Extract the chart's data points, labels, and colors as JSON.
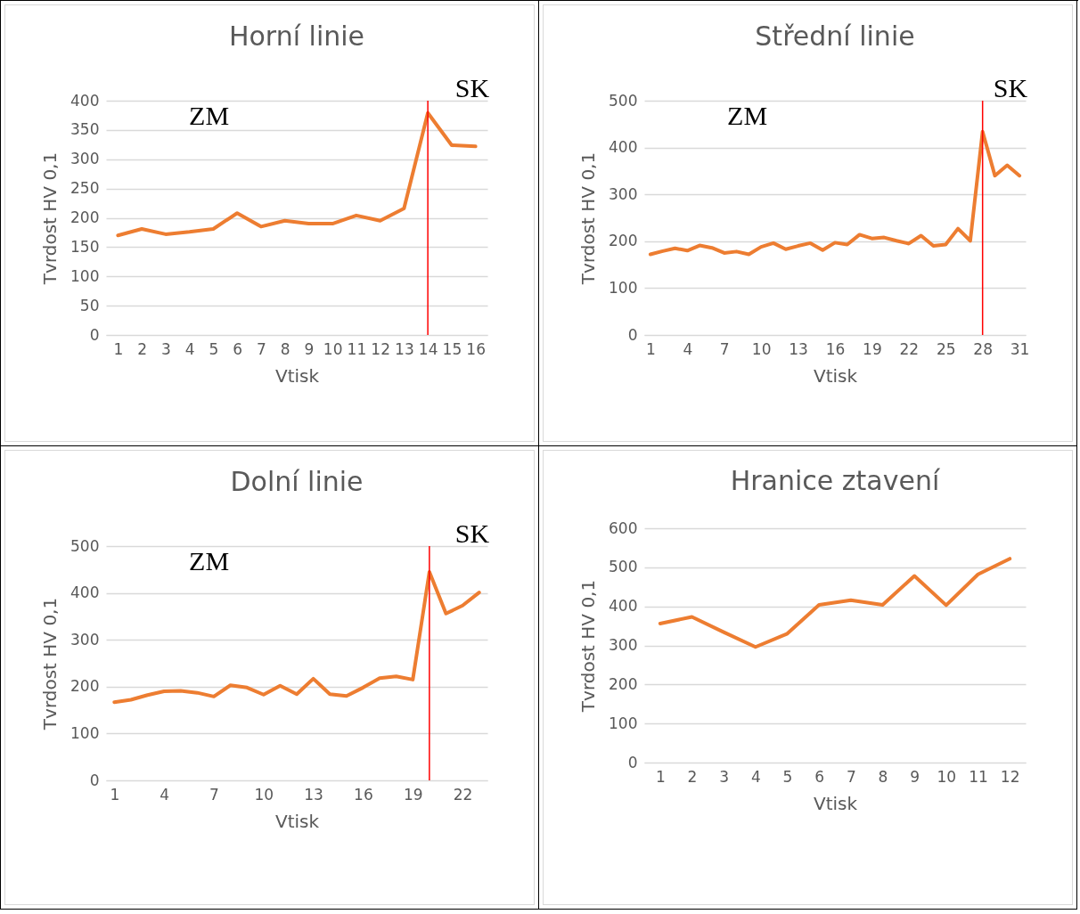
{
  "chart_data": [
    {
      "type": "line",
      "title": "Horní linie",
      "xlabel": "Vtisk",
      "ylabel": "Tvrdost HV 0,1",
      "x": [
        1,
        2,
        3,
        4,
        5,
        6,
        7,
        8,
        9,
        10,
        11,
        12,
        13,
        14,
        15,
        16
      ],
      "xlim": [
        0.5,
        16.5
      ],
      "xticks": [
        1,
        2,
        3,
        4,
        5,
        6,
        7,
        8,
        9,
        10,
        11,
        12,
        13,
        14,
        15,
        16
      ],
      "ylim": [
        0,
        400
      ],
      "yticks": [
        0,
        50,
        100,
        150,
        200,
        250,
        300,
        350,
        400
      ],
      "grid": "y",
      "series": [
        {
          "color": "#ed7d31",
          "values": [
            170,
            181,
            172,
            176,
            181,
            208,
            185,
            195,
            190,
            190,
            204,
            195,
            216,
            379,
            324,
            322
          ]
        }
      ],
      "ref_lines": [
        {
          "axis": "x",
          "value": 14,
          "color": "#ff0000"
        }
      ],
      "annotations": [
        "ZM",
        "SK"
      ]
    },
    {
      "type": "line",
      "title": "Střední linie",
      "xlabel": "Vtisk",
      "ylabel": "Tvrdost HV 0,1",
      "x": [
        1,
        2,
        3,
        4,
        5,
        6,
        7,
        8,
        9,
        10,
        11,
        12,
        13,
        14,
        15,
        16,
        17,
        18,
        19,
        20,
        21,
        22,
        23,
        24,
        25,
        26,
        27,
        28,
        29,
        30,
        31
      ],
      "xlim": [
        0.5,
        31.5
      ],
      "xticks": [
        1,
        4,
        7,
        10,
        13,
        16,
        19,
        22,
        25,
        28,
        31
      ],
      "ylim": [
        0,
        500
      ],
      "yticks": [
        0,
        100,
        200,
        300,
        400,
        500
      ],
      "grid": "y",
      "series": [
        {
          "color": "#ed7d31",
          "values": [
            172,
            179,
            185,
            180,
            191,
            186,
            175,
            178,
            172,
            188,
            196,
            183,
            190,
            196,
            181,
            197,
            193,
            214,
            206,
            208,
            201,
            195,
            212,
            190,
            193,
            227,
            201,
            434,
            340,
            362,
            340
          ]
        }
      ],
      "ref_lines": [
        {
          "axis": "x",
          "value": 28,
          "color": "#ff0000"
        }
      ],
      "annotations": [
        "ZM",
        "SK"
      ]
    },
    {
      "type": "line",
      "title": "Dolní linie",
      "xlabel": "Vtisk",
      "ylabel": "Tvrdost HV 0,1",
      "x": [
        1,
        2,
        3,
        4,
        5,
        6,
        7,
        8,
        9,
        10,
        11,
        12,
        13,
        14,
        15,
        16,
        17,
        18,
        19,
        20,
        21,
        22,
        23
      ],
      "xlim": [
        0.5,
        23.5
      ],
      "xticks": [
        1,
        4,
        7,
        10,
        13,
        16,
        19,
        22
      ],
      "ylim": [
        0,
        500
      ],
      "yticks": [
        0,
        100,
        200,
        300,
        400,
        500
      ],
      "grid": "y",
      "series": [
        {
          "color": "#ed7d31",
          "values": [
            167,
            172,
            182,
            190,
            191,
            187,
            179,
            203,
            198,
            183,
            202,
            184,
            217,
            184,
            180,
            198,
            218,
            222,
            215,
            445,
            356,
            373,
            401
          ]
        }
      ],
      "ref_lines": [
        {
          "axis": "x",
          "value": 20,
          "color": "#ff0000"
        }
      ],
      "annotations": [
        "ZM",
        "SK"
      ]
    },
    {
      "type": "line",
      "title": "Hranice ztavení",
      "xlabel": "Vtisk",
      "ylabel": "Tvrdost HV 0,1",
      "x": [
        1,
        2,
        3,
        4,
        5,
        6,
        7,
        8,
        9,
        10,
        11,
        12
      ],
      "xlim": [
        0.5,
        12.5
      ],
      "xticks": [
        1,
        2,
        3,
        4,
        5,
        6,
        7,
        8,
        9,
        10,
        11,
        12
      ],
      "ylim": [
        0,
        600
      ],
      "yticks": [
        0,
        100,
        200,
        300,
        400,
        500,
        600
      ],
      "grid": "y",
      "series": [
        {
          "color": "#ed7d31",
          "values": [
            356,
            373,
            334,
            296,
            330,
            404,
            416,
            404,
            478,
            403,
            482,
            522
          ]
        }
      ]
    }
  ]
}
